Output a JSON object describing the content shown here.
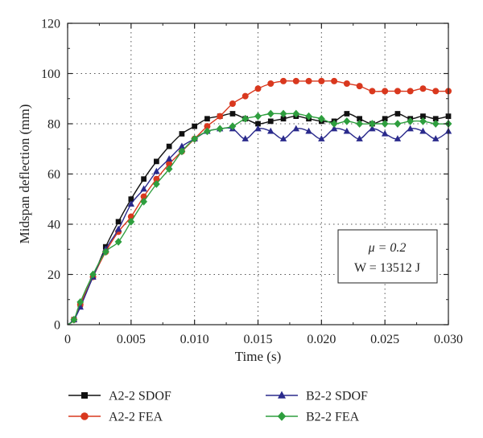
{
  "chart_data": {
    "type": "line",
    "xlabel": "Time (s)",
    "ylabel": "Midspan deflection (mm)",
    "xlim": [
      0,
      0.03
    ],
    "ylim": [
      0,
      120
    ],
    "x_ticks": [
      "0",
      "0.005",
      "0.010",
      "0.015",
      "0.020",
      "0.025",
      "0.030"
    ],
    "y_ticks": [
      "0",
      "20",
      "40",
      "60",
      "80",
      "100",
      "120"
    ],
    "grid": "dotted",
    "legend_position": "bottom",
    "annotation": {
      "line1": "μ = 0.2",
      "line2": "W = 13512 J"
    },
    "series": [
      {
        "name": "A2-2 SDOF",
        "color": "#111111",
        "marker": "square",
        "x": [
          0,
          0.0005,
          0.001,
          0.002,
          0.003,
          0.004,
          0.005,
          0.006,
          0.007,
          0.008,
          0.009,
          0.01,
          0.011,
          0.012,
          0.013,
          0.014,
          0.015,
          0.016,
          0.017,
          0.018,
          0.019,
          0.02,
          0.021,
          0.022,
          0.023,
          0.024,
          0.025,
          0.026,
          0.027,
          0.028,
          0.029,
          0.03
        ],
        "y": [
          0,
          2,
          8,
          19,
          31,
          41,
          50,
          58,
          65,
          71,
          76,
          79,
          82,
          83,
          84,
          82,
          80,
          81,
          82,
          83,
          82,
          81,
          81,
          84,
          82,
          80,
          82,
          84,
          82,
          83,
          82,
          83
        ]
      },
      {
        "name": "A2-2 FEA",
        "color": "#d9381e",
        "marker": "circle",
        "x": [
          0,
          0.0005,
          0.001,
          0.002,
          0.003,
          0.004,
          0.005,
          0.006,
          0.007,
          0.008,
          0.009,
          0.01,
          0.011,
          0.012,
          0.013,
          0.014,
          0.015,
          0.016,
          0.017,
          0.018,
          0.019,
          0.02,
          0.021,
          0.022,
          0.023,
          0.024,
          0.025,
          0.026,
          0.027,
          0.028,
          0.029,
          0.03
        ],
        "y": [
          0,
          2,
          8,
          19,
          29,
          37,
          43,
          51,
          58,
          64,
          69,
          74,
          79,
          83,
          88,
          91,
          94,
          96,
          97,
          97,
          97,
          97,
          97,
          96,
          95,
          93,
          93,
          93,
          93,
          94,
          93,
          93
        ]
      },
      {
        "name": "B2-2 SDOF",
        "color": "#2a2a8c",
        "marker": "triangle",
        "x": [
          0,
          0.0005,
          0.001,
          0.002,
          0.003,
          0.004,
          0.005,
          0.006,
          0.007,
          0.008,
          0.009,
          0.01,
          0.011,
          0.012,
          0.013,
          0.014,
          0.015,
          0.016,
          0.017,
          0.018,
          0.019,
          0.02,
          0.021,
          0.022,
          0.023,
          0.024,
          0.025,
          0.026,
          0.027,
          0.028,
          0.029,
          0.03
        ],
        "y": [
          0,
          2,
          7,
          19,
          30,
          38,
          48,
          54,
          61,
          66,
          71,
          74,
          77,
          78,
          78,
          74,
          78,
          77,
          74,
          78,
          77,
          74,
          78,
          77,
          74,
          78,
          76,
          74,
          78,
          77,
          74,
          77
        ]
      },
      {
        "name": "B2-2 FEA",
        "color": "#2e9e3e",
        "marker": "diamond",
        "x": [
          0,
          0.0005,
          0.001,
          0.002,
          0.003,
          0.004,
          0.005,
          0.006,
          0.007,
          0.008,
          0.009,
          0.01,
          0.011,
          0.012,
          0.013,
          0.014,
          0.015,
          0.016,
          0.017,
          0.018,
          0.019,
          0.02,
          0.021,
          0.022,
          0.023,
          0.024,
          0.025,
          0.026,
          0.027,
          0.028,
          0.029,
          0.03
        ],
        "y": [
          0,
          2,
          9,
          20,
          29,
          33,
          41,
          49,
          56,
          62,
          69,
          74,
          77,
          78,
          79,
          82,
          83,
          84,
          84,
          84,
          83,
          82,
          80,
          81,
          80,
          80,
          80,
          80,
          81,
          81,
          80,
          80
        ]
      }
    ]
  }
}
